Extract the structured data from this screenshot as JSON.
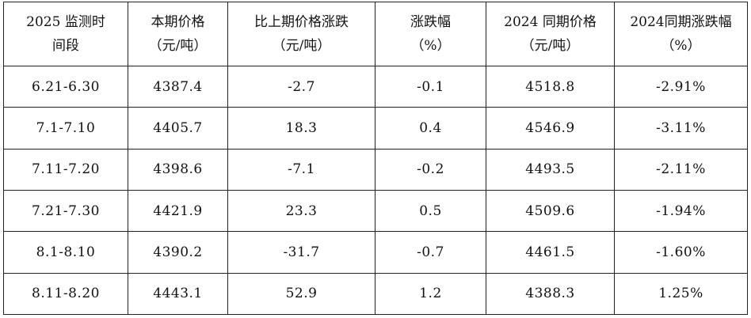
{
  "table": {
    "headers": [
      [
        "2025 监测时",
        "间段"
      ],
      [
        "本期价格",
        "（元/吨）"
      ],
      [
        "比上期价格涨跌",
        "（元/吨）"
      ],
      [
        "涨跌幅",
        "（%）"
      ],
      [
        "2024 同期价格",
        "（元/吨）"
      ],
      [
        "2024同期涨跌幅",
        "（%）"
      ]
    ],
    "rows": [
      [
        "6.21-6.30",
        "4387.4",
        "-2.7",
        "-0.1",
        "4518.8",
        "-2.91%"
      ],
      [
        "7.1-7.10",
        "4405.7",
        "18.3",
        "0.4",
        "4546.9",
        "-3.11%"
      ],
      [
        "7.11-7.20",
        "4398.6",
        "-7.1",
        "-0.2",
        "4493.5",
        "-2.11%"
      ],
      [
        "7.21-7.30",
        "4421.9",
        "23.3",
        "0.5",
        "4509.6",
        "-1.94%"
      ],
      [
        "8.1-8.10",
        "4390.2",
        "-31.7",
        "-0.7",
        "4461.5",
        "-1.60%"
      ],
      [
        "8.11-8.20",
        "4443.1",
        "52.9",
        "1.2",
        "4388.3",
        "1.25%"
      ]
    ]
  }
}
